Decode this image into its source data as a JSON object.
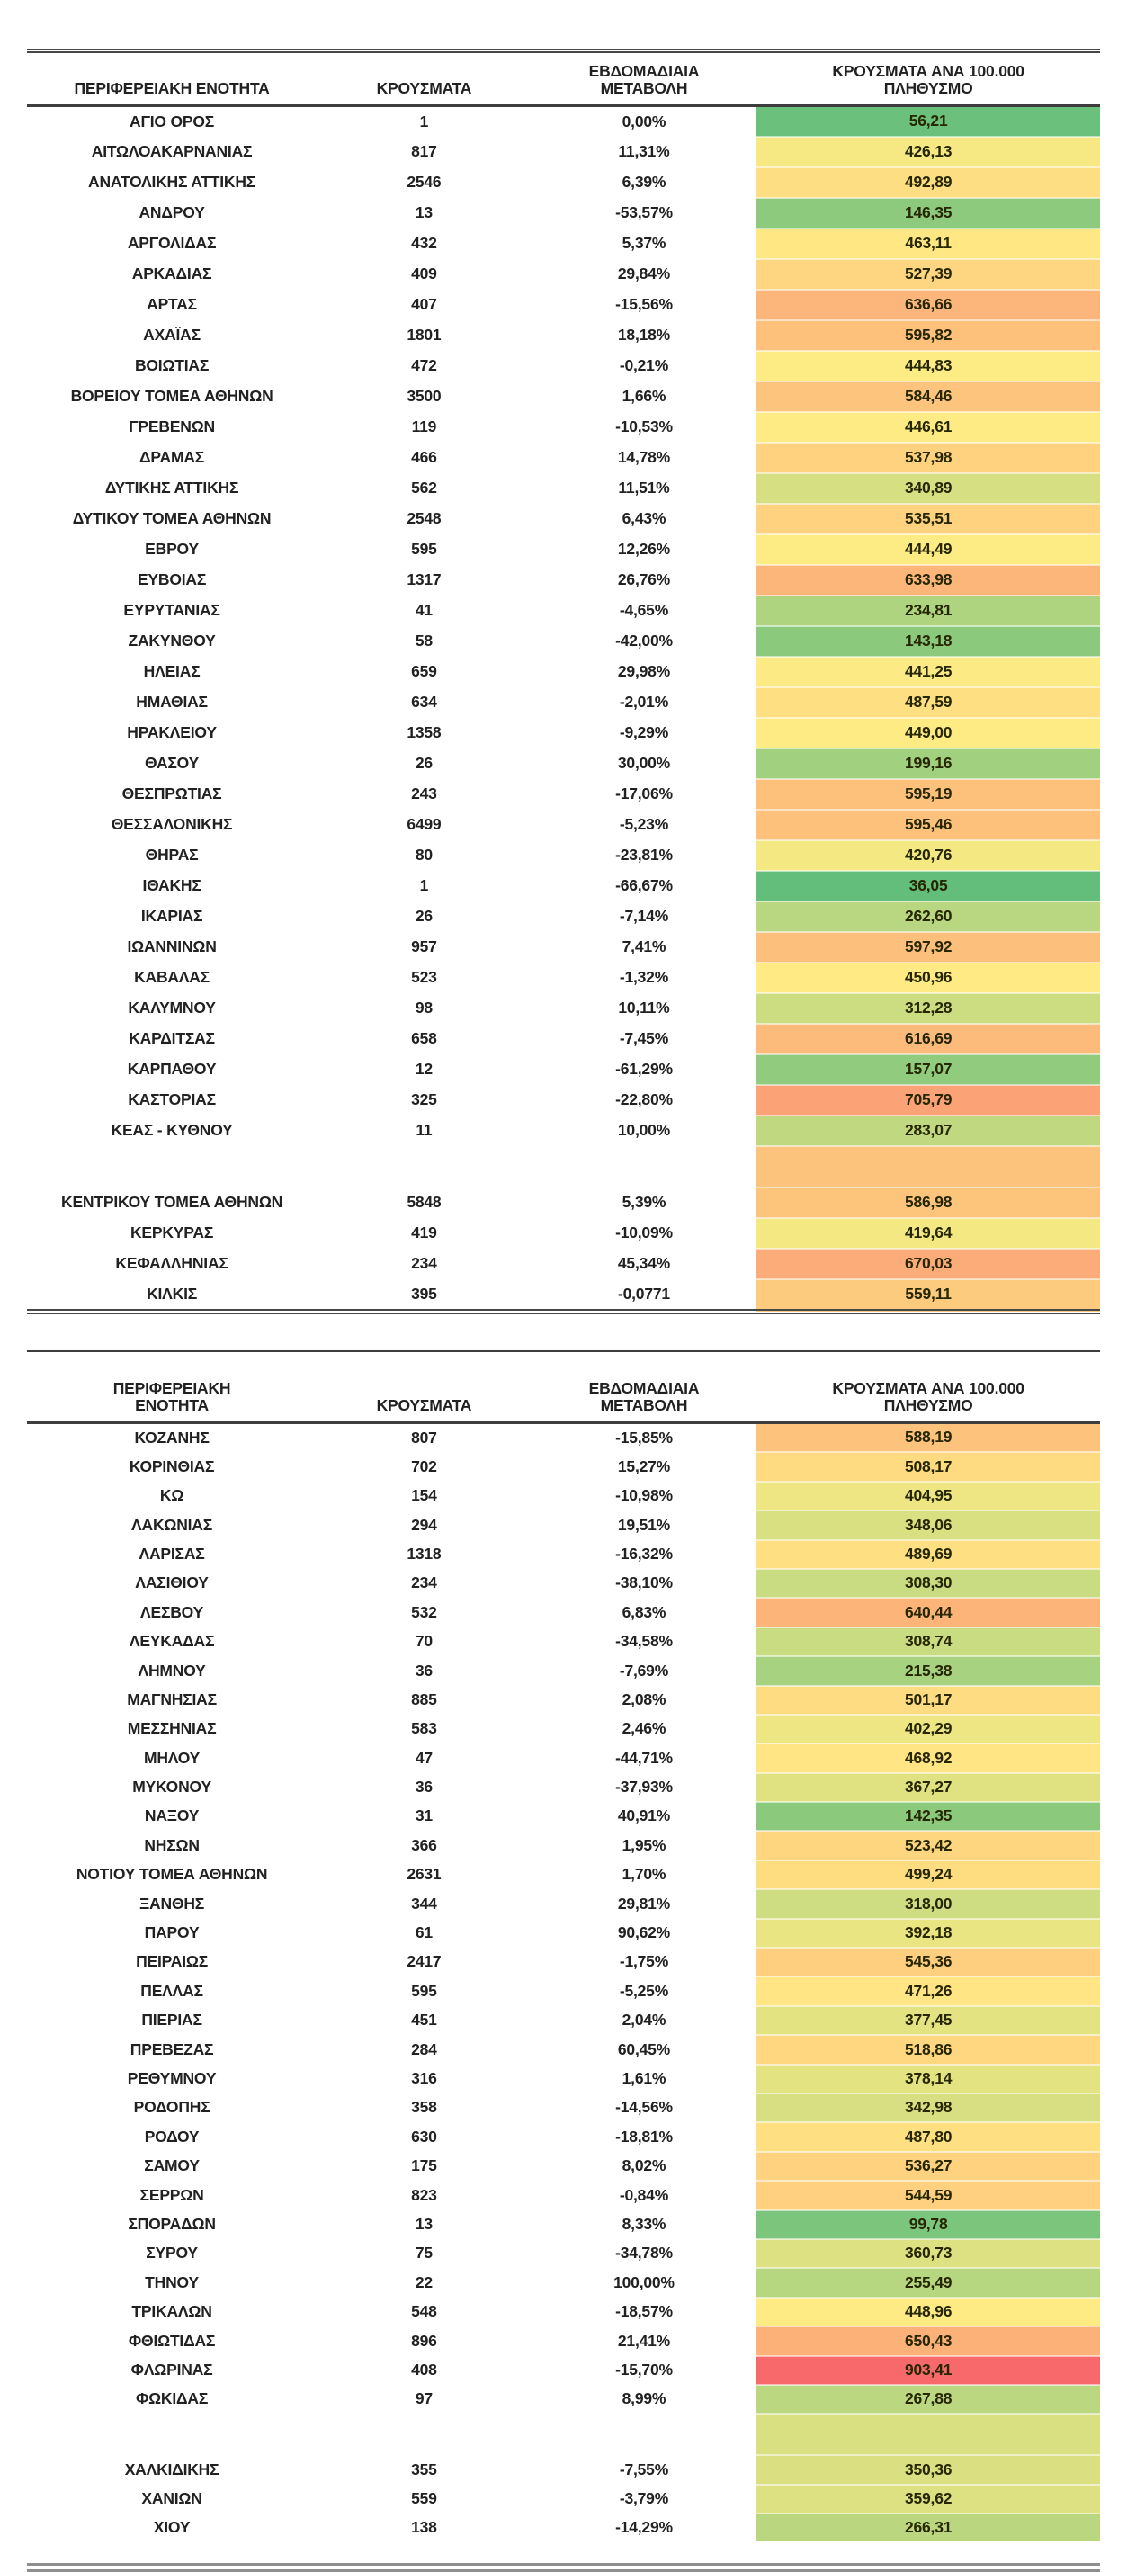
{
  "page": {
    "background": "#ffffff"
  },
  "heatmap": {
    "colors": {
      "low": "#63BE7B",
      "mid": "#FFEB84",
      "high": "#F8696B"
    },
    "domain": {
      "min": 36.05,
      "mid": 448.96,
      "max": 903.41
    }
  },
  "table1": {
    "headers": [
      "ΠΕΡΙΦΕΡΕΙΑΚΗ ΕΝΟΤΗΤΑ",
      "ΚΡΟΥΣΜΑΤΑ",
      "ΕΒΔΟΜΑΔΙΑΙΑ ΜΕΤΑΒΟΛΗ",
      "ΚΡΟΥΣΜΑΤΑ ΑΝΑ 100.000 ΠΛΗΘΥΣΜΟ"
    ],
    "rows": [
      [
        "ΑΓΙΟ ΟΡΟΣ",
        "1",
        "0,00%",
        "56,21"
      ],
      [
        "ΑΙΤΩΛΟΑΚΑΡΝΑΝΙΑΣ",
        "817",
        "11,31%",
        "426,13"
      ],
      [
        "ΑΝΑΤΟΛΙΚΗΣ ΑΤΤΙΚΗΣ",
        "2546",
        "6,39%",
        "492,89"
      ],
      [
        "ΑΝΔΡΟΥ",
        "13",
        "-53,57%",
        "146,35"
      ],
      [
        "ΑΡΓΟΛΙΔΑΣ",
        "432",
        "5,37%",
        "463,11"
      ],
      [
        "ΑΡΚΑΔΙΑΣ",
        "409",
        "29,84%",
        "527,39"
      ],
      [
        "ΑΡΤΑΣ",
        "407",
        "-15,56%",
        "636,66"
      ],
      [
        "ΑΧΑΪΑΣ",
        "1801",
        "18,18%",
        "595,82"
      ],
      [
        "ΒΟΙΩΤΙΑΣ",
        "472",
        "-0,21%",
        "444,83"
      ],
      [
        "ΒΟΡΕΙΟΥ ΤΟΜΕΑ ΑΘΗΝΩΝ",
        "3500",
        "1,66%",
        "584,46"
      ],
      [
        "ΓΡΕΒΕΝΩΝ",
        "119",
        "-10,53%",
        "446,61"
      ],
      [
        "ΔΡΑΜΑΣ",
        "466",
        "14,78%",
        "537,98"
      ],
      [
        "ΔΥΤΙΚΗΣ ΑΤΤΙΚΗΣ",
        "562",
        "11,51%",
        "340,89"
      ],
      [
        "ΔΥΤΙΚΟΥ ΤΟΜΕΑ ΑΘΗΝΩΝ",
        "2548",
        "6,43%",
        "535,51"
      ],
      [
        "ΕΒΡΟΥ",
        "595",
        "12,26%",
        "444,49"
      ],
      [
        "ΕΥΒΟΙΑΣ",
        "1317",
        "26,76%",
        "633,98"
      ],
      [
        "ΕΥΡΥΤΑΝΙΑΣ",
        "41",
        "-4,65%",
        "234,81"
      ],
      [
        "ΖΑΚΥΝΘΟΥ",
        "58",
        "-42,00%",
        "143,18"
      ],
      [
        "ΗΛΕΙΑΣ",
        "659",
        "29,98%",
        "441,25"
      ],
      [
        "ΗΜΑΘΙΑΣ",
        "634",
        "-2,01%",
        "487,59"
      ],
      [
        "ΗΡΑΚΛΕΙΟΥ",
        "1358",
        "-9,29%",
        "449,00"
      ],
      [
        "ΘΑΣΟΥ",
        "26",
        "30,00%",
        "199,16"
      ],
      [
        "ΘΕΣΠΡΩΤΙΑΣ",
        "243",
        "-17,06%",
        "595,19"
      ],
      [
        "ΘΕΣΣΑΛΟΝΙΚΗΣ",
        "6499",
        "-5,23%",
        "595,46"
      ],
      [
        "ΘΗΡΑΣ",
        "80",
        "-23,81%",
        "420,76"
      ],
      [
        "ΙΘΑΚΗΣ",
        "1",
        "-66,67%",
        "36,05"
      ],
      [
        "ΙΚΑΡΙΑΣ",
        "26",
        "-7,14%",
        "262,60"
      ],
      [
        "ΙΩΑΝΝΙΝΩΝ",
        "957",
        "7,41%",
        "597,92"
      ],
      [
        "ΚΑΒΑΛΑΣ",
        "523",
        "-1,32%",
        "450,96"
      ],
      [
        "ΚΑΛΥΜΝΟΥ",
        "98",
        "10,11%",
        "312,28"
      ],
      [
        "ΚΑΡΔΙΤΣΑΣ",
        "658",
        "-7,45%",
        "616,69"
      ],
      [
        "ΚΑΡΠΑΘΟΥ",
        "12",
        "-61,29%",
        "157,07"
      ],
      [
        "ΚΑΣΤΟΡΙΑΣ",
        "325",
        "-22,80%",
        "705,79"
      ],
      [
        "ΚΕΑΣ - ΚΥΘΝΟΥ",
        "11",
        "10,00%",
        "283,07"
      ],
      {
        "blank": true,
        "fill": "#FCC37C"
      },
      [
        "ΚΕΝΤΡΙΚΟΥ ΤΟΜΕΑ ΑΘΗΝΩΝ",
        "5848",
        "5,39%",
        "586,98"
      ],
      [
        "ΚΕΡΚΥΡΑΣ",
        "419",
        "-10,09%",
        "419,64"
      ],
      [
        "ΚΕΦΑΛΛΗΝΙΑΣ",
        "234",
        "45,34%",
        "670,03"
      ],
      [
        "ΚΙΛΚΙΣ",
        "395",
        "-0,0771",
        "559,11"
      ]
    ]
  },
  "table2": {
    "headers": [
      "ΠΕΡΙΦΕΡΕΙΑΚΗ ΕΝΟΤΗΤΑ",
      "ΚΡΟΥΣΜΑΤΑ",
      "ΕΒΔΟΜΑΔΙΑΙΑ ΜΕΤΑΒΟΛΗ",
      "ΚΡΟΥΣΜΑΤΑ ΑΝΑ 100.000 ΠΛΗΘΥΣΜΟ"
    ],
    "rows": [
      [
        "ΚΟΖΑΝΗΣ",
        "807",
        "-15,85%",
        "588,19"
      ],
      [
        "ΚΟΡΙΝΘΙΑΣ",
        "702",
        "15,27%",
        "508,17"
      ],
      [
        "ΚΩ",
        "154",
        "-10,98%",
        "404,95"
      ],
      [
        "ΛΑΚΩΝΙΑΣ",
        "294",
        "19,51%",
        "348,06"
      ],
      [
        "ΛΑΡΙΣΑΣ",
        "1318",
        "-16,32%",
        "489,69"
      ],
      [
        "ΛΑΣΙΘΙΟΥ",
        "234",
        "-38,10%",
        "308,30"
      ],
      [
        "ΛΕΣΒΟΥ",
        "532",
        "6,83%",
        "640,44"
      ],
      [
        "ΛΕΥΚΑΔΑΣ",
        "70",
        "-34,58%",
        "308,74"
      ],
      [
        "ΛΗΜΝΟΥ",
        "36",
        "-7,69%",
        "215,38"
      ],
      [
        "ΜΑΓΝΗΣΙΑΣ",
        "885",
        "2,08%",
        "501,17"
      ],
      [
        "ΜΕΣΣΗΝΙΑΣ",
        "583",
        "2,46%",
        "402,29"
      ],
      [
        "ΜΗΛΟΥ",
        "47",
        "-44,71%",
        "468,92"
      ],
      [
        "ΜΥΚΟΝΟΥ",
        "36",
        "-37,93%",
        "367,27"
      ],
      [
        "ΝΑΞΟΥ",
        "31",
        "40,91%",
        "142,35"
      ],
      [
        "ΝΗΣΩΝ",
        "366",
        "1,95%",
        "523,42"
      ],
      [
        "ΝΟΤΙΟΥ ΤΟΜΕΑ ΑΘΗΝΩΝ",
        "2631",
        "1,70%",
        "499,24"
      ],
      [
        "ΞΑΝΘΗΣ",
        "344",
        "29,81%",
        "318,00"
      ],
      [
        "ΠΑΡΟΥ",
        "61",
        "90,62%",
        "392,18"
      ],
      [
        "ΠΕΙΡΑΙΩΣ",
        "2417",
        "-1,75%",
        "545,36"
      ],
      [
        "ΠΕΛΛΑΣ",
        "595",
        "-5,25%",
        "471,26"
      ],
      [
        "ΠΙΕΡΙΑΣ",
        "451",
        "2,04%",
        "377,45"
      ],
      [
        "ΠΡΕΒΕΖΑΣ",
        "284",
        "60,45%",
        "518,86"
      ],
      [
        "ΡΕΘΥΜΝΟΥ",
        "316",
        "1,61%",
        "378,14"
      ],
      [
        "ΡΟΔΟΠΗΣ",
        "358",
        "-14,56%",
        "342,98"
      ],
      [
        "ΡΟΔΟΥ",
        "630",
        "-18,81%",
        "487,80"
      ],
      [
        "ΣΑΜΟΥ",
        "175",
        "8,02%",
        "536,27"
      ],
      [
        "ΣΕΡΡΩΝ",
        "823",
        "-0,84%",
        "544,59"
      ],
      [
        "ΣΠΟΡΑΔΩΝ",
        "13",
        "8,33%",
        "99,78"
      ],
      [
        "ΣΥΡΟΥ",
        "75",
        "-34,78%",
        "360,73"
      ],
      [
        "ΤΗΝΟΥ",
        "22",
        "100,00%",
        "255,49"
      ],
      [
        "ΤΡΙΚΑΛΩΝ",
        "548",
        "-18,57%",
        "448,96"
      ],
      [
        "ΦΘΙΩΤΙΔΑΣ",
        "896",
        "21,41%",
        "650,43"
      ],
      [
        "ΦΛΩΡΙΝΑΣ",
        "408",
        "-15,70%",
        "903,41"
      ],
      [
        "ΦΩΚΙΔΑΣ",
        "97",
        "8,99%",
        "267,88"
      ],
      {
        "blank": true,
        "fill": "#D9E082"
      },
      [
        "ΧΑΛΚΙΔΙΚΗΣ",
        "355",
        "-7,55%",
        "350,36"
      ],
      [
        "ΧΑΝΙΩΝ",
        "559",
        "-3,79%",
        "359,62"
      ],
      [
        "ΧΙΟΥ",
        "138",
        "-14,29%",
        "266,31"
      ]
    ]
  }
}
